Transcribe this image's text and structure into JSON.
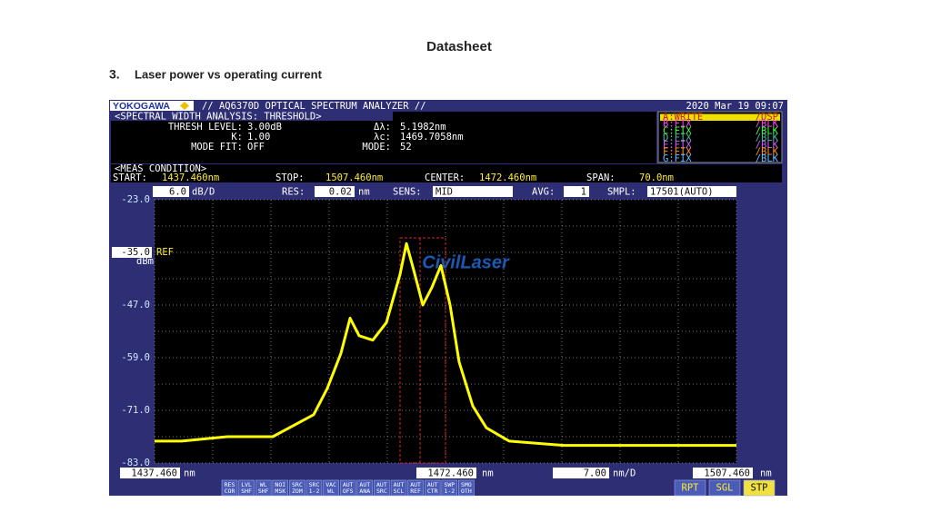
{
  "header": {
    "title": "Datasheet",
    "section_number": "3.",
    "section_title": "Laser power vs operating current"
  },
  "osa": {
    "brand": "YOKOGAWA",
    "model": "// AQ6370D OPTICAL SPECTRUM ANALYZER //",
    "datetime": "2020 Mar 19 09:07",
    "analysis": {
      "title": "<SPECTRAL WIDTH ANALYSIS: THRESHOLD>",
      "rows": [
        [
          "THRESH LEVEL:",
          "3.00dB"
        ],
        [
          "K:",
          "1.00"
        ],
        [
          "MODE FIT:",
          "OFF"
        ]
      ],
      "rows2": [
        [
          "Δλ:",
          "5.1982nm"
        ],
        [
          "λc:",
          "1469.7058nm"
        ],
        [
          "MODE:",
          "52"
        ]
      ]
    },
    "traces": [
      {
        "name": "A:WRITE",
        "state": "/DSP",
        "color": "#f0e000"
      },
      {
        "name": "B:FIX",
        "state": "/BLK",
        "color": "#ff40ff"
      },
      {
        "name": "C:FIX",
        "state": "/BLK",
        "color": "#40ff40"
      },
      {
        "name": "D:FIX",
        "state": "/BLK",
        "color": "#40c0a0"
      },
      {
        "name": "E:FIX",
        "state": "/BLK",
        "color": "#d060ff"
      },
      {
        "name": "F:FIX",
        "state": "/BLK",
        "color": "#ff9020"
      },
      {
        "name": "G:FIX",
        "state": "/BLK",
        "color": "#60c0ff"
      }
    ],
    "meas": {
      "title": "<MEAS CONDITION>",
      "items": [
        [
          "START:",
          "1437.460nm"
        ],
        [
          "STOP:",
          "1507.460nm"
        ],
        [
          "CENTER:",
          "1472.460nm"
        ],
        [
          "SPAN:",
          "70.0nm"
        ]
      ]
    },
    "settings": {
      "scale": "6.0",
      "scale_unit": "dB/D",
      "res_label": "RES:",
      "res": "0.02",
      "res_unit": "nm",
      "sens_label": "SENS:",
      "sens": "MID",
      "avg_label": "AVG:",
      "avg": "1",
      "smpl_label": "SMPL:",
      "smpl": "17501(AUTO)"
    },
    "ref_label": "REF",
    "y_unit": "dBm",
    "ref_level": {
      "value": -35,
      "label": "-35.0"
    },
    "watermark": "CivilLaser",
    "plot": {
      "type": "line",
      "xlim": [
        1437.46,
        1507.46
      ],
      "ylim": [
        -83,
        -23
      ],
      "yticks": [
        {
          "value": -23,
          "label": "-23.0"
        },
        {
          "value": -35,
          "label": "-35.0"
        },
        {
          "value": -47,
          "label": "-47.0"
        },
        {
          "value": -59,
          "label": "-59.0"
        },
        {
          "value": -71,
          "label": "-71.0"
        },
        {
          "value": -83,
          "label": "-83.0"
        }
      ],
      "xticks": [
        {
          "value": 1437.46,
          "label": "1437.460"
        },
        {
          "value": 1472.46,
          "label": "1472.460"
        },
        {
          "value": 1507.46,
          "label": "1507.460"
        }
      ],
      "x_unit": "nm",
      "x_scale": "7.00",
      "x_scale_unit": "nm/D",
      "color": "#ffff00",
      "grid": true,
      "x": [
        1437.46,
        1440.74,
        1446.21,
        1451.68,
        1456.6,
        1458.24,
        1459.88,
        1460.98,
        1462.07,
        1463.71,
        1465.35,
        1466.99,
        1467.76,
        1468.63,
        1469.73,
        1470.82,
        1471.91,
        1473.01,
        1474.1,
        1475.74,
        1477.38,
        1480.11,
        1486.68,
        1495.43,
        1507.46
      ],
      "y": [
        -78,
        -78,
        -77,
        -77,
        -72,
        -66,
        -58,
        -50,
        -54,
        -55,
        -51,
        -40,
        -33,
        -39,
        -47,
        -43,
        -38,
        -47,
        -60,
        -70,
        -75,
        -78,
        -79,
        -79,
        -79
      ]
    },
    "softkeys": [
      [
        "RES",
        "COR"
      ],
      [
        "LVL",
        "SHF"
      ],
      [
        "WL",
        "SHF"
      ],
      [
        "NOI",
        "MSK"
      ],
      [
        "SRC",
        "ZOM"
      ],
      [
        "SRC",
        "1-2"
      ],
      [
        "VAC",
        "WL"
      ],
      [
        "AUT",
        "OFS"
      ],
      [
        "AUT",
        "ANA"
      ],
      [
        "AUT",
        "SRC"
      ],
      [
        "AUT",
        "SCL"
      ],
      [
        "AUT",
        "REF"
      ],
      [
        "AUT",
        "CTR"
      ],
      [
        "SWP",
        "1-2"
      ],
      [
        "SMO",
        "OTH"
      ]
    ],
    "run_keys": [
      "RPT",
      "SGL",
      "STP"
    ]
  }
}
